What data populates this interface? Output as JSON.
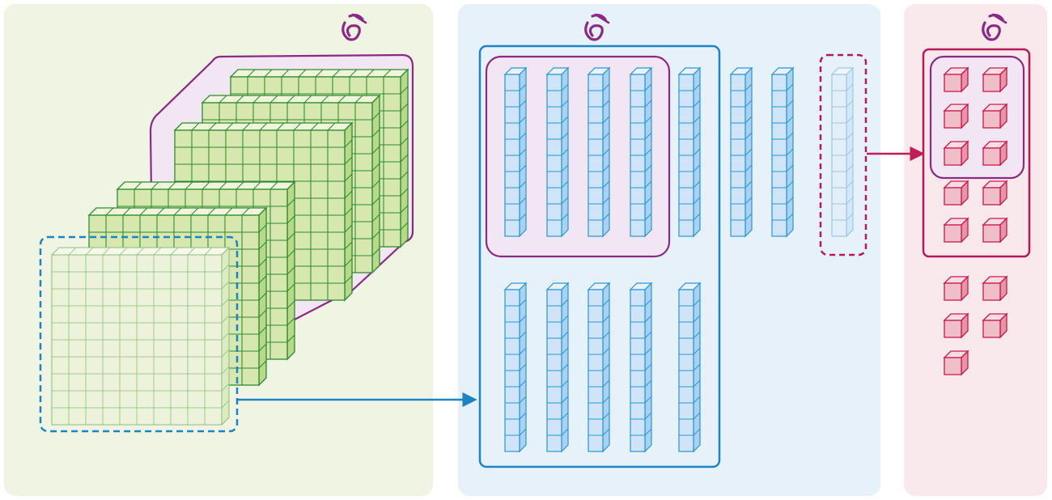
{
  "colors": {
    "panel_green": "#f0f4e3",
    "panel_blue": "#e6f1fa",
    "panel_pink": "#f9e9ed",
    "green_front": "#d6e8b0",
    "green_top": "#eef6dc",
    "green_side": "#b8d98a",
    "green_stroke": "#2f8a2f",
    "pale_front": "#ecf3da",
    "pale_stroke": "#8dbd7c",
    "blue_front": "#cfe5f7",
    "blue_top": "#e8f3fc",
    "blue_side": "#a9d1f0",
    "blue_stroke": "#2a95d4",
    "blue_frame": "#1d84c4",
    "ghost_stroke": "#9cc7e6",
    "pink_front": "#f0bec9",
    "pink_top": "#f9dde3",
    "pink_side": "#e595a7",
    "pink_stroke": "#c9194b",
    "frame_pink": "#b5195a",
    "purple": "#8b2a86",
    "purple_fill": "#f1e6f1"
  },
  "icons": [
    "wave-icon",
    "wave-icon",
    "wave-icon"
  ],
  "diagram": {
    "stack_layers": 5,
    "grid_cells_per_side": 10,
    "column_cells": 10,
    "top_row_columns": 7,
    "bottom_row_columns": 5,
    "cube_pairs": 7
  }
}
